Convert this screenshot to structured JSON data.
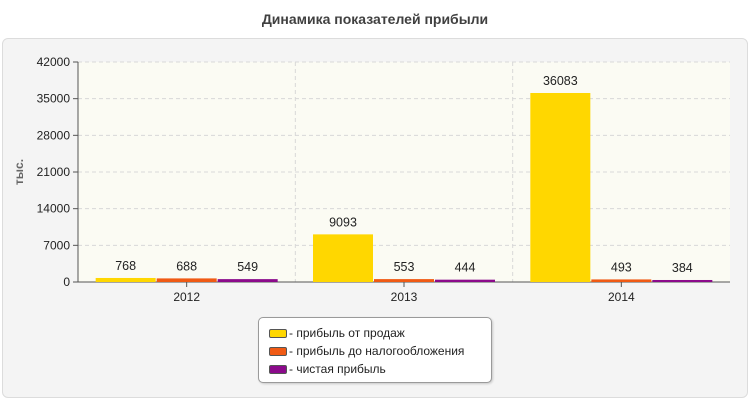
{
  "chart_data": {
    "type": "bar",
    "title": "Динамика показателей прибыли",
    "xlabel": "",
    "ylabel": "тыс.",
    "categories": [
      "2012",
      "2013",
      "2014"
    ],
    "yticks": [
      "0",
      "7000",
      "14000",
      "21000",
      "28000",
      "35000",
      "42000"
    ],
    "ylim": [
      0,
      42000
    ],
    "grid": true,
    "legend_position": "bottom",
    "series": [
      {
        "name": "- прибыль от продаж",
        "color": "#ffd700",
        "values": [
          768,
          9093,
          36083
        ],
        "labels": [
          "768",
          "9093",
          "36083"
        ]
      },
      {
        "name": "- прибыль до налогообложения",
        "color": "#f05a14",
        "values": [
          688,
          553,
          493
        ],
        "labels": [
          "688",
          "553",
          "493"
        ]
      },
      {
        "name": "- чистая прибыль",
        "color": "#8b0a8b",
        "values": [
          549,
          444,
          384
        ],
        "labels": [
          "549",
          "444",
          "384"
        ]
      }
    ]
  }
}
